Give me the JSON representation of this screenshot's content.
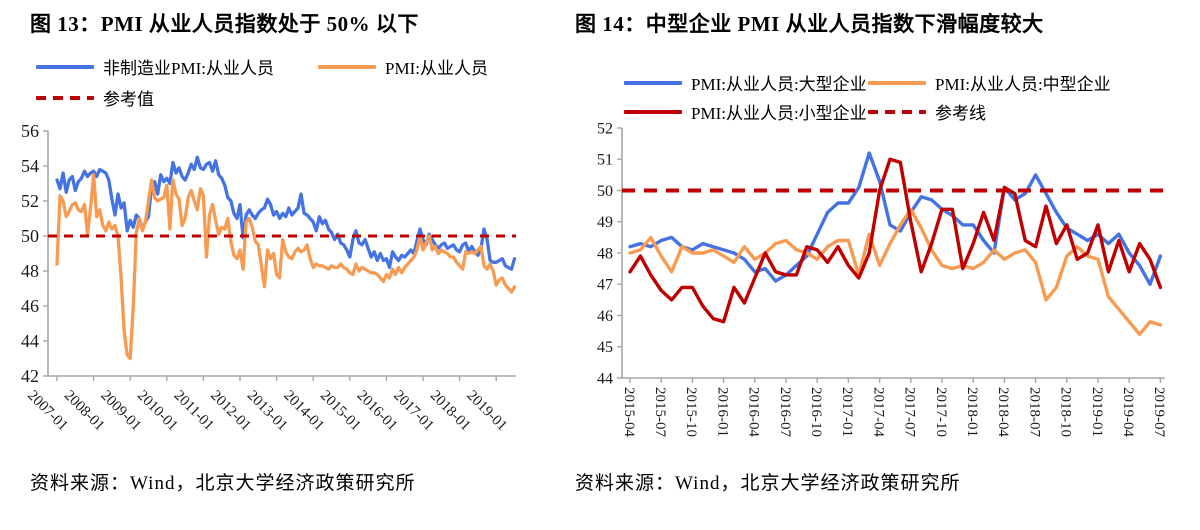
{
  "source_notes": {
    "left": "资料来源：Wind，北京大学经济政策研究所",
    "right": "资料来源：Wind，北京大学经济政策研究所"
  },
  "colors": {
    "blue": "#4573E3",
    "orange": "#F79B52",
    "red": "#C00000",
    "axis": "#a6a6a6"
  },
  "chart_data": [
    {
      "type": "line",
      "title": "图 13：PMI 从业人员指数处于 50% 以下",
      "x_start": "2007-01",
      "x_end": "2019-07",
      "x_freq": "monthly",
      "x_tick_labels": [
        "2007-01",
        "2008-01",
        "2009-01",
        "2010-01",
        "2011-01",
        "2012-01",
        "2013-01",
        "2014-01",
        "2015-01",
        "2016-01",
        "2017-01",
        "2018-01",
        "2019-01"
      ],
      "ylim": [
        42,
        56
      ],
      "y_ticks": [
        42,
        44,
        46,
        48,
        50,
        52,
        54,
        56
      ],
      "grid": false,
      "legend_position": "top",
      "reference_label": "参考值",
      "reference_value": 50,
      "reference_color": "#C00000",
      "series": [
        {
          "name": "非制造业PMI:从业人员",
          "color": "#4573E3",
          "values": [
            53.2,
            52.7,
            53.6,
            52.5,
            53.2,
            53.4,
            52.6,
            53.1,
            53.3,
            53.7,
            53.4,
            53.6,
            53.7,
            53.4,
            53.8,
            53.7,
            53.6,
            53.2,
            52.1,
            51.2,
            52.4,
            51.6,
            51.9,
            50.3,
            50.9,
            50.5,
            51.2,
            51.0,
            50.4,
            50.8,
            51.1,
            52.9,
            53.1,
            52.4,
            53.5,
            53.1,
            53.3,
            53.0,
            54.2,
            53.6,
            53.9,
            53.4,
            53.2,
            53.6,
            54.1,
            53.8,
            54.5,
            53.9,
            53.8,
            54.1,
            54.2,
            53.7,
            54.3,
            53.5,
            53.3,
            52.9,
            52.2,
            52.0,
            51.3,
            51.0,
            51.8,
            49.9,
            51.2,
            51.5,
            51.2,
            51.0,
            51.3,
            51.5,
            51.6,
            52.1,
            51.8,
            51.2,
            51.4,
            51.0,
            51.3,
            51.1,
            51.6,
            51.2,
            51.4,
            51.6,
            52.4,
            51.3,
            51.2,
            51.0,
            50.8,
            50.3,
            51.1,
            50.7,
            50.9,
            50.4,
            50.2,
            49.8,
            50.1,
            49.6,
            49.5,
            49.2,
            48.8,
            49.8,
            50.3,
            49.6,
            49.5,
            49.8,
            49.3,
            48.8,
            49.1,
            48.6,
            49.0,
            48.6,
            48.7,
            48.2,
            49.1,
            48.8,
            48.6,
            48.9,
            48.8,
            49.0,
            49.2,
            49.0,
            49.7,
            50.4,
            49.8,
            49.5,
            50.1,
            49.8,
            49.5,
            49.3,
            49.5,
            49.6,
            49.3,
            49.4,
            49.5,
            49.2,
            49.1,
            49.5,
            49.6,
            49.1,
            49.4,
            49.1,
            48.9,
            49.3,
            50.4,
            49.8,
            48.6,
            48.5,
            48.5,
            48.6,
            48.7,
            48.3,
            48.2,
            48.1,
            48.7
          ]
        },
        {
          "name": "PMI:从业人员",
          "color": "#F79B52",
          "values": [
            48.4,
            52.3,
            52.0,
            51.1,
            51.4,
            51.8,
            51.9,
            51.5,
            51.4,
            51.8,
            50.1,
            51.6,
            53.5,
            51.1,
            51.5,
            50.6,
            50.3,
            50.8,
            50.4,
            50.6,
            50.0,
            47.6,
            44.6,
            43.2,
            43.0,
            46.0,
            50.2,
            51.0,
            50.3,
            50.8,
            52.0,
            53.2,
            52.2,
            52.0,
            52.1,
            52.2,
            52.9,
            50.4,
            53.2,
            52.4,
            52.1,
            50.6,
            51.0,
            52.2,
            52.6,
            52.0,
            51.5,
            52.7,
            52.3,
            48.8,
            51.2,
            51.8,
            50.9,
            50.1,
            50.5,
            50.4,
            51.0,
            49.7,
            48.9,
            48.7,
            49.2,
            48.1,
            50.8,
            51.0,
            50.5,
            49.7,
            49.5,
            48.3,
            47.1,
            49.2,
            48.7,
            49.0,
            47.8,
            47.6,
            49.8,
            49.1,
            48.8,
            48.7,
            49.1,
            49.3,
            49.1,
            49.2,
            49.5,
            48.7,
            48.2,
            48.4,
            48.3,
            48.3,
            48.2,
            48.1,
            48.3,
            48.2,
            48.2,
            48.4,
            48.2,
            48.1,
            47.9,
            47.8,
            48.4,
            48.0,
            48.2,
            48.1,
            48.0,
            47.9,
            47.9,
            47.8,
            47.6,
            47.4,
            47.8,
            47.6,
            48.1,
            47.8,
            48.2,
            47.9,
            48.2,
            48.4,
            48.6,
            48.8,
            49.2,
            50.0,
            49.2,
            49.6,
            50.0,
            49.2,
            49.4,
            49.0,
            49.2,
            49.1,
            49.0,
            48.8,
            48.8,
            48.5,
            48.3,
            48.1,
            49.1,
            49.0,
            49.1,
            49.0,
            49.2,
            49.4,
            48.3,
            48.1,
            48.4,
            48.0,
            47.2,
            47.5,
            47.6,
            47.2,
            47.0,
            46.8,
            47.1
          ]
        }
      ]
    },
    {
      "type": "line",
      "title": "图 14：中型企业 PMI 从业人员指数下滑幅度较大",
      "x_start": "2015-04",
      "x_end": "2019-07",
      "x_freq": "monthly",
      "x_tick_labels": [
        "2015-04",
        "2015-07",
        "2015-10",
        "2016-01",
        "2016-04",
        "2016-07",
        "2016-10",
        "2017-01",
        "2017-04",
        "2017-07",
        "2017-10",
        "2018-01",
        "2018-04",
        "2018-07",
        "2018-10",
        "2019-01",
        "2019-04",
        "2019-07"
      ],
      "ylim": [
        44,
        52
      ],
      "y_ticks": [
        44,
        45,
        46,
        47,
        48,
        49,
        50,
        51,
        52
      ],
      "grid": false,
      "legend_position": "top",
      "reference_label": "参考线",
      "reference_value": 50,
      "reference_color": "#C00000",
      "series": [
        {
          "name": "PMI:从业人员:大型企业",
          "color": "#4573E3",
          "values": [
            48.2,
            48.3,
            48.2,
            48.4,
            48.5,
            48.2,
            48.1,
            48.3,
            48.2,
            48.1,
            48.0,
            47.8,
            47.4,
            47.5,
            47.1,
            47.3,
            47.6,
            47.9,
            48.6,
            49.3,
            49.6,
            49.6,
            50.1,
            51.2,
            50.3,
            48.9,
            48.7,
            49.3,
            49.8,
            49.7,
            49.4,
            49.2,
            48.9,
            48.9,
            48.4,
            48.0,
            50.1,
            49.7,
            49.9,
            50.5,
            49.9,
            49.3,
            48.8,
            48.6,
            48.4,
            48.6,
            48.3,
            48.6,
            48.0,
            47.6,
            47.0,
            47.9
          ]
        },
        {
          "name": "PMI:从业人员:中型企业",
          "color": "#F79B52",
          "values": [
            48.0,
            48.1,
            48.5,
            47.9,
            47.4,
            48.2,
            48.0,
            48.0,
            48.1,
            47.9,
            47.7,
            48.2,
            47.8,
            48.0,
            48.3,
            48.4,
            48.1,
            48.0,
            47.8,
            48.2,
            48.4,
            48.4,
            47.3,
            48.6,
            47.6,
            48.3,
            48.9,
            49.4,
            48.8,
            48.1,
            47.6,
            47.5,
            47.6,
            47.5,
            47.7,
            48.1,
            47.8,
            48.0,
            48.1,
            47.7,
            46.5,
            46.9,
            47.9,
            48.2,
            47.9,
            47.8,
            46.6,
            46.2,
            45.8,
            45.4,
            45.8,
            45.7
          ]
        },
        {
          "name": "PMI:从业人员:小型企业",
          "color": "#C00000",
          "values": [
            47.4,
            47.9,
            47.3,
            46.8,
            46.5,
            46.9,
            46.9,
            46.3,
            45.9,
            45.8,
            46.9,
            46.4,
            47.2,
            48.0,
            47.4,
            47.3,
            47.3,
            48.2,
            48.1,
            47.7,
            48.2,
            47.6,
            47.2,
            48.0,
            50.0,
            51.0,
            50.9,
            49.0,
            47.4,
            48.3,
            49.4,
            49.4,
            47.5,
            48.3,
            49.3,
            48.4,
            50.1,
            49.9,
            48.4,
            48.2,
            49.5,
            48.3,
            48.9,
            47.8,
            48.0,
            48.9,
            47.4,
            48.4,
            47.4,
            48.3,
            47.8,
            46.9
          ]
        }
      ]
    }
  ]
}
